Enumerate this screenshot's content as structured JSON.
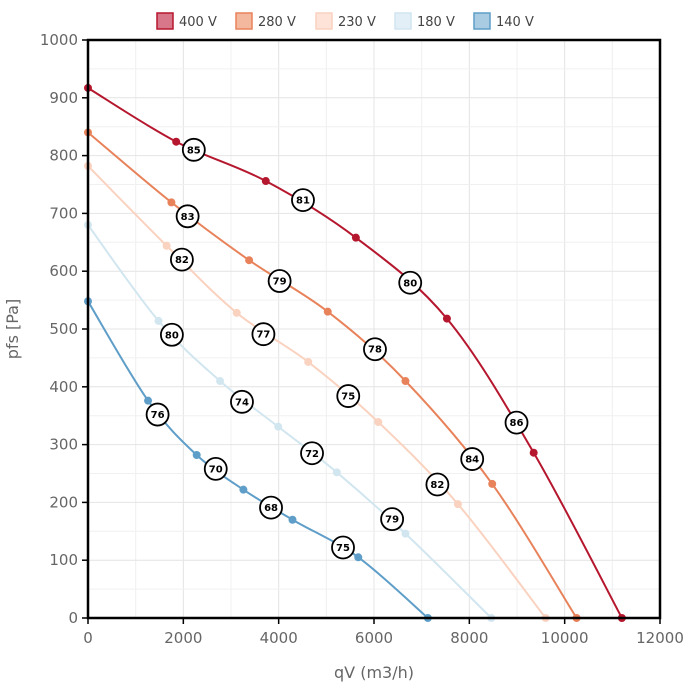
{
  "chart_data": {
    "type": "line",
    "xlabel": "qV (m3/h)",
    "ylabel": "pfs [Pa]",
    "xlim": [
      0,
      12000
    ],
    "ylim": [
      0,
      1000
    ],
    "xticks": [
      0,
      2000,
      4000,
      6000,
      8000,
      10000,
      12000
    ],
    "yticks": [
      0,
      100,
      200,
      300,
      400,
      500,
      600,
      700,
      800,
      900,
      1000
    ],
    "grid": true,
    "legend_position": "top",
    "series": [
      {
        "name": "400 V",
        "color": "#b5172e",
        "fill": "#d9778a",
        "x": [
          0,
          1850,
          3730,
          5620,
          7530,
          9350,
          11200
        ],
        "y": [
          917,
          824,
          756,
          658,
          518,
          286,
          0
        ],
        "badges": [
          {
            "x": 2220,
            "y": 810,
            "label": "85"
          },
          {
            "x": 4510,
            "y": 723,
            "label": "81"
          },
          {
            "x": 6760,
            "y": 580,
            "label": "80"
          },
          {
            "x": 8990,
            "y": 338,
            "label": "86"
          }
        ]
      },
      {
        "name": "280 V",
        "color": "#e8825a",
        "fill": "#f4b89e",
        "x": [
          0,
          1750,
          3380,
          5030,
          6660,
          8480,
          10250
        ],
        "y": [
          840,
          719,
          619,
          530,
          410,
          232,
          0
        ],
        "badges": [
          {
            "x": 2090,
            "y": 695,
            "label": "83"
          },
          {
            "x": 4020,
            "y": 583,
            "label": "79"
          },
          {
            "x": 6020,
            "y": 465,
            "label": "78"
          },
          {
            "x": 8060,
            "y": 275,
            "label": "84"
          }
        ]
      },
      {
        "name": "230 V",
        "color": "#fad2c0",
        "fill": "#fde3d8",
        "x": [
          0,
          1650,
          3120,
          4620,
          6090,
          7760,
          9600
        ],
        "y": [
          782,
          644,
          528,
          443,
          339,
          197,
          0
        ],
        "badges": [
          {
            "x": 1970,
            "y": 620,
            "label": "82"
          },
          {
            "x": 3680,
            "y": 491,
            "label": "77"
          },
          {
            "x": 5460,
            "y": 384,
            "label": "75"
          },
          {
            "x": 7330,
            "y": 231,
            "label": "82"
          }
        ]
      },
      {
        "name": "180 V",
        "color": "#d2e6f0",
        "fill": "#e2eff6",
        "x": [
          0,
          1480,
          2770,
          3990,
          5220,
          6660,
          8460
        ],
        "y": [
          680,
          514,
          410,
          331,
          252,
          146,
          0
        ],
        "badges": [
          {
            "x": 1760,
            "y": 490,
            "label": "80"
          },
          {
            "x": 3230,
            "y": 374,
            "label": "74"
          },
          {
            "x": 4700,
            "y": 285,
            "label": "72"
          },
          {
            "x": 6380,
            "y": 171,
            "label": "79"
          }
        ]
      },
      {
        "name": "140 V",
        "color": "#5f9ec8",
        "fill": "#a9cce3",
        "x": [
          0,
          1260,
          2280,
          3260,
          4290,
          5670,
          7130
        ],
        "y": [
          548,
          376,
          282,
          222,
          170,
          105,
          0
        ],
        "badges": [
          {
            "x": 1460,
            "y": 352,
            "label": "76"
          },
          {
            "x": 2680,
            "y": 258,
            "label": "70"
          },
          {
            "x": 3840,
            "y": 191,
            "label": "68"
          },
          {
            "x": 5350,
            "y": 122,
            "label": "75"
          }
        ]
      }
    ]
  }
}
